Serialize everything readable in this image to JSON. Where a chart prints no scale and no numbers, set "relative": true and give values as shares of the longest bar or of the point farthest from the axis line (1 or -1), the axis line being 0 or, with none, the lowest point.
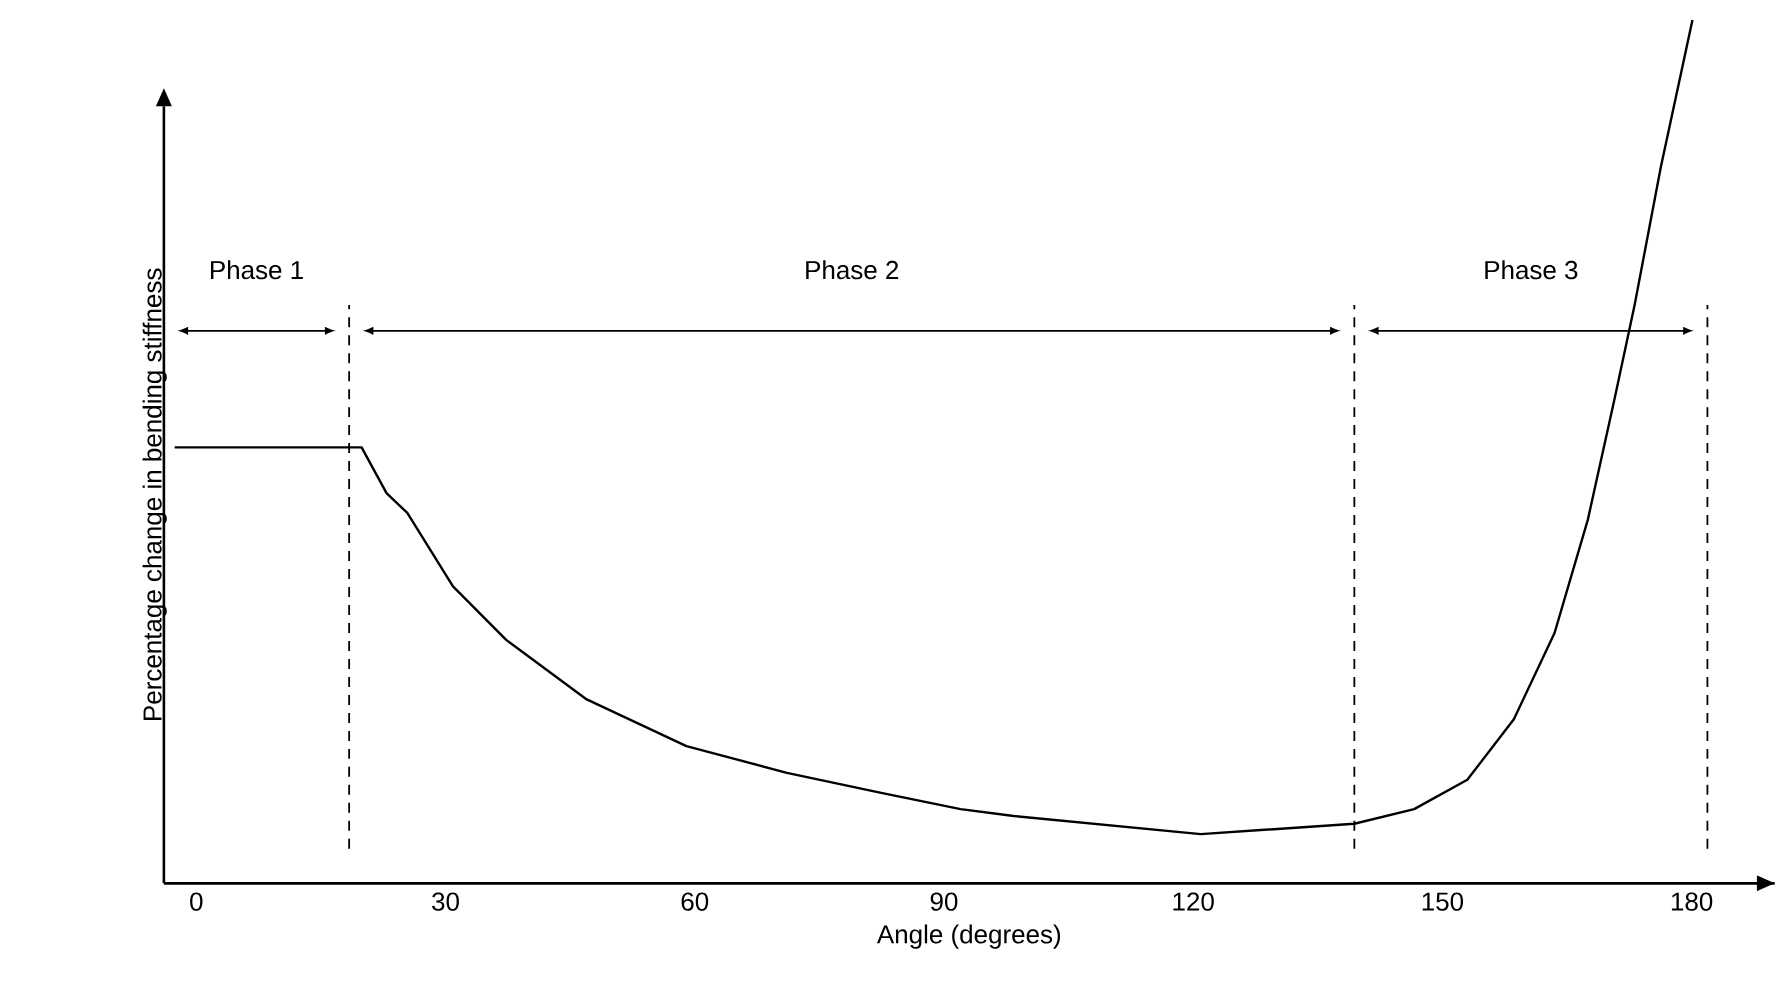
{
  "chart_data": {
    "type": "line",
    "relative": true,
    "xlabel": "Angle (degrees)",
    "ylabel": "Percentage change in bending stiffness",
    "annotations": [
      "Phase 1",
      "Phase 2",
      "Phase 3"
    ],
    "xlim": [
      -3.9,
      190
    ],
    "xticks": [
      0,
      30,
      60,
      90,
      120,
      150,
      180
    ],
    "ref_lines": [
      {
        "axis": "x",
        "value": 18.4,
        "line_style": "dashed"
      },
      {
        "axis": "x",
        "value": 139.4,
        "line_style": "dashed"
      },
      {
        "axis": "x",
        "value": 181.9,
        "line_style": "dashed"
      }
    ],
    "line_style": "solid",
    "series": [
      {
        "color": "#000000",
        "x": [
          -2.6,
          19.9,
          22.9,
          25.4,
          30.9,
          37.3,
          47.0,
          59.0,
          71.1,
          82.3,
          92.0,
          98.4,
          120.9,
          139.4,
          146.6,
          153.0,
          158.6,
          163.5,
          167.5,
          170.7,
          173.1,
          176.3,
          180.1
        ],
        "values": [
          0.505,
          0.505,
          0.452,
          0.429,
          0.344,
          0.282,
          0.213,
          0.159,
          0.128,
          0.105,
          0.086,
          0.078,
          0.057,
          0.069,
          0.086,
          0.12,
          0.19,
          0.29,
          0.421,
          0.56,
          0.668,
          0.83,
          1.0
        ]
      }
    ]
  }
}
